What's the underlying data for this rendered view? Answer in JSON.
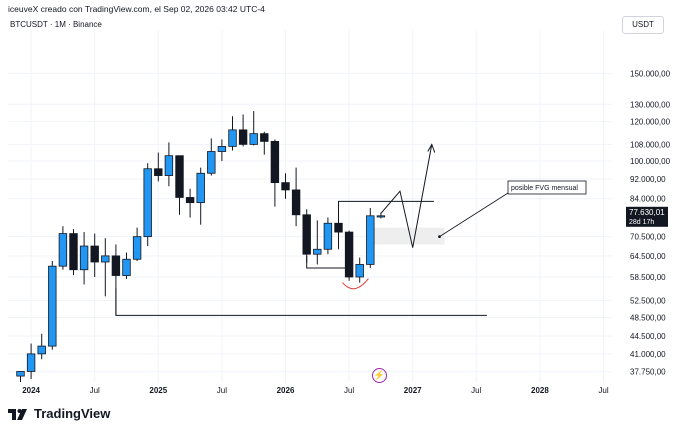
{
  "header": {
    "credit": "iceuveX creado con TradingView.com, el Sep 02, 2026 03:42 UTC-4"
  },
  "symbol": {
    "label": "BTCUSDT · 1M · Binance"
  },
  "currency_button": "USDT",
  "brand": {
    "name": "TradingView"
  },
  "colors": {
    "up": "#2196f3",
    "down": "#131722",
    "grid": "#f0f3fa",
    "fvg_zone": "#eeeeee",
    "arc": "#e53935"
  },
  "chart_data": {
    "type": "candlestick",
    "symbol": "BTCUSDT",
    "timeframe": "1M",
    "exchange": "Binance",
    "y_scale": "log",
    "ylim": [
      36000,
      175000
    ],
    "x_tick_labels": [
      "2024",
      "Jul",
      "2025",
      "Jul",
      "2026",
      "Jul",
      "2027",
      "Jul",
      "2028",
      "Jul"
    ],
    "y_tick_labels": [
      "150.000,00",
      "130.000,00",
      "120.000,00",
      "108.000,00",
      "100.000,00",
      "92.000,00",
      "84.000,00",
      "70.500,00",
      "64.500,00",
      "58.500,00",
      "52.500,00",
      "48.500,00",
      "44.500,00",
      "41.000,00",
      "37.750,00"
    ],
    "y_tick_values": [
      150000,
      130000,
      120000,
      108000,
      100000,
      92000,
      84000,
      70500,
      64500,
      58500,
      52500,
      48500,
      44500,
      41000,
      37750
    ],
    "candles": [
      {
        "o": 37000,
        "h": 37800,
        "l": 36000,
        "c": 37800
      },
      {
        "o": 37800,
        "h": 43000,
        "l": 36500,
        "c": 41000
      },
      {
        "o": 41000,
        "h": 45000,
        "l": 40000,
        "c": 42500
      },
      {
        "o": 42500,
        "h": 63000,
        "l": 41800,
        "c": 61500
      },
      {
        "o": 61500,
        "h": 74000,
        "l": 60500,
        "c": 71500
      },
      {
        "o": 71500,
        "h": 73000,
        "l": 59000,
        "c": 60500
      },
      {
        "o": 60500,
        "h": 72000,
        "l": 56500,
        "c": 67500
      },
      {
        "o": 67500,
        "h": 71500,
        "l": 58500,
        "c": 62700
      },
      {
        "o": 62700,
        "h": 70000,
        "l": 53500,
        "c": 64500
      },
      {
        "o": 64500,
        "h": 68000,
        "l": 49000,
        "c": 58900
      },
      {
        "o": 58900,
        "h": 65500,
        "l": 58000,
        "c": 63500
      },
      {
        "o": 63500,
        "h": 73500,
        "l": 63000,
        "c": 70500
      },
      {
        "o": 70500,
        "h": 99000,
        "l": 67500,
        "c": 96500
      },
      {
        "o": 96500,
        "h": 104000,
        "l": 91000,
        "c": 93500
      },
      {
        "o": 93500,
        "h": 109000,
        "l": 89000,
        "c": 102500
      },
      {
        "o": 102500,
        "h": 102500,
        "l": 78000,
        "c": 84500
      },
      {
        "o": 84500,
        "h": 88000,
        "l": 77000,
        "c": 82500
      },
      {
        "o": 82500,
        "h": 97000,
        "l": 74500,
        "c": 94500
      },
      {
        "o": 94500,
        "h": 111000,
        "l": 93500,
        "c": 104500
      },
      {
        "o": 104500,
        "h": 110500,
        "l": 100000,
        "c": 107000
      },
      {
        "o": 107000,
        "h": 123000,
        "l": 105000,
        "c": 115500
      },
      {
        "o": 115500,
        "h": 124000,
        "l": 107000,
        "c": 108000
      },
      {
        "o": 108000,
        "h": 126000,
        "l": 107500,
        "c": 113500
      },
      {
        "o": 113500,
        "h": 114500,
        "l": 103000,
        "c": 109500
      },
      {
        "o": 109500,
        "h": 110500,
        "l": 81000,
        "c": 90500
      },
      {
        "o": 90500,
        "h": 94500,
        "l": 84000,
        "c": 87500
      },
      {
        "o": 87500,
        "h": 97000,
        "l": 74000,
        "c": 78000
      },
      {
        "o": 78000,
        "h": 80000,
        "l": 62500,
        "c": 65000
      },
      {
        "o": 65000,
        "h": 76000,
        "l": 62000,
        "c": 66500
      },
      {
        "o": 66500,
        "h": 77000,
        "l": 65000,
        "c": 75000
      },
      {
        "o": 75000,
        "h": 76500,
        "l": 66500,
        "c": 72000
      },
      {
        "o": 72000,
        "h": 72500,
        "l": 57500,
        "c": 58500
      },
      {
        "o": 58500,
        "h": 64000,
        "l": 57000,
        "c": 62000
      },
      {
        "o": 62000,
        "h": 80500,
        "l": 61000,
        "c": 77630
      },
      {
        "o": 77630,
        "h": 78800,
        "l": 76700,
        "c": 77630
      }
    ],
    "last_price_label": "77.630,01",
    "countdown_label": "28d 17h",
    "annotations": {
      "fvg_label": "posible FVG mensual",
      "fvg_zone": [
        68000,
        73500
      ],
      "support_level": 49000,
      "resistance_level": 83000,
      "range_low": 61000
    }
  }
}
